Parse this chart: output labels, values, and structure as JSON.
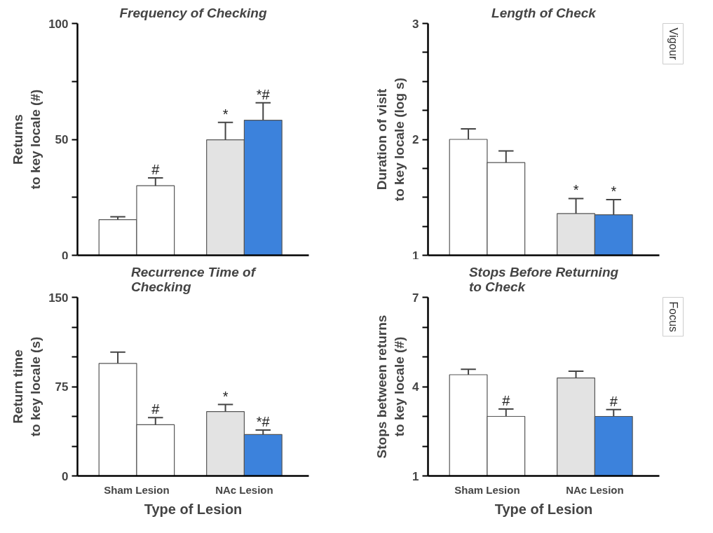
{
  "chart_data": [
    {
      "type": "bar",
      "title": "Frequency of Checking",
      "ylabel": "Returns\nto key locale (#)",
      "categories": [
        null,
        null
      ],
      "ylim": [
        0,
        100
      ],
      "yticks": [
        0,
        {
          "value": 25,
          "label": null
        },
        50,
        {
          "value": 75,
          "label": null
        },
        100
      ],
      "series": [
        {
          "colors": [
            "#ffffff",
            "#e3e3e3"
          ],
          "values": [
            15.4,
            49.8
          ],
          "errors": [
            [
              15.4,
              16.6
            ],
            [
              49.8,
              57.3
            ]
          ],
          "value_labels": [
            null,
            "*"
          ]
        },
        {
          "colors": [
            "#ffffff",
            "#3c82dc"
          ],
          "values": [
            30,
            58.3
          ],
          "errors": [
            [
              30,
              33.4
            ],
            [
              58.3,
              65.8
            ]
          ],
          "value_labels": [
            "#",
            "*#"
          ]
        }
      ]
    },
    {
      "type": "bar",
      "title": "Length of Check",
      "ylabel": "Duration of visit\nto key locale (log s)",
      "categories": [
        null,
        null
      ],
      "ylim": [
        1,
        3
      ],
      "yticks": [
        1,
        {
          "value": 1.25,
          "label": null
        },
        {
          "value": 1.5,
          "label": null
        },
        {
          "value": 1.75,
          "label": null
        },
        2,
        {
          "value": 2.25,
          "label": null
        },
        {
          "value": 2.5,
          "label": null
        },
        {
          "value": 2.75,
          "label": null
        },
        3
      ],
      "annotations": [
        "Vigour"
      ],
      "series": [
        {
          "colors": [
            "#ffffff",
            "#e3e3e3"
          ],
          "values": [
            2.0,
            1.36
          ],
          "errors": [
            [
              2.0,
              2.09
            ],
            [
              1.36,
              1.49
            ]
          ],
          "value_labels": [
            null,
            "*"
          ]
        },
        {
          "colors": [
            "#ffffff",
            "#3c82dc"
          ],
          "values": [
            1.8,
            1.35
          ],
          "errors": [
            [
              1.8,
              1.9
            ],
            [
              1.35,
              1.48
            ]
          ],
          "value_labels": [
            null,
            "*"
          ]
        }
      ]
    },
    {
      "type": "bar",
      "title": "Recurrence Time of\nChecking",
      "ylabel": "Return time\nto key locale (s)",
      "xlabel": "Type of Lesion",
      "categories": [
        "Sham Lesion",
        "NAc Lesion"
      ],
      "ylim": [
        0,
        150
      ],
      "yticks": [
        0,
        {
          "value": 25,
          "label": null
        },
        {
          "value": 50,
          "label": null
        },
        75,
        {
          "value": 100,
          "label": null
        },
        {
          "value": 125,
          "label": null
        },
        150
      ],
      "series": [
        {
          "colors": [
            "#ffffff",
            "#e3e3e3"
          ],
          "values": [
            94.5,
            54
          ],
          "errors": [
            [
              94.5,
              104
            ],
            [
              54,
              60
            ]
          ],
          "value_labels": [
            null,
            "*"
          ]
        },
        {
          "colors": [
            "#ffffff",
            "#3c82dc"
          ],
          "values": [
            43,
            34.8
          ],
          "errors": [
            [
              43,
              49
            ],
            [
              34.8,
              38.5
            ]
          ],
          "value_labels": [
            "#",
            "*#"
          ]
        }
      ]
    },
    {
      "type": "bar",
      "title": "Stops Before Returning\nto Check",
      "ylabel": "Stops between returns\nto key locale (#)",
      "xlabel": "Type of Lesion",
      "categories": [
        "Sham Lesion",
        "NAc Lesion"
      ],
      "ylim": [
        1,
        7
      ],
      "yticks": [
        1,
        {
          "value": 2,
          "label": null
        },
        {
          "value": 3,
          "label": null
        },
        4,
        {
          "value": 5,
          "label": null
        },
        {
          "value": 6,
          "label": null
        },
        7
      ],
      "annotations": [
        "Focus"
      ],
      "series": [
        {
          "colors": [
            "#ffffff",
            "#e3e3e3"
          ],
          "values": [
            4.4,
            4.29
          ],
          "errors": [
            [
              4.4,
              4.58
            ],
            [
              4.29,
              4.52
            ]
          ],
          "value_labels": [
            null,
            null
          ]
        },
        {
          "colors": [
            "#ffffff",
            "#3c82dc"
          ],
          "values": [
            3.0,
            3.0
          ],
          "errors": [
            [
              3.0,
              3.25
            ],
            [
              3.0,
              3.23
            ]
          ],
          "value_labels": [
            "#",
            "#"
          ]
        }
      ]
    }
  ]
}
